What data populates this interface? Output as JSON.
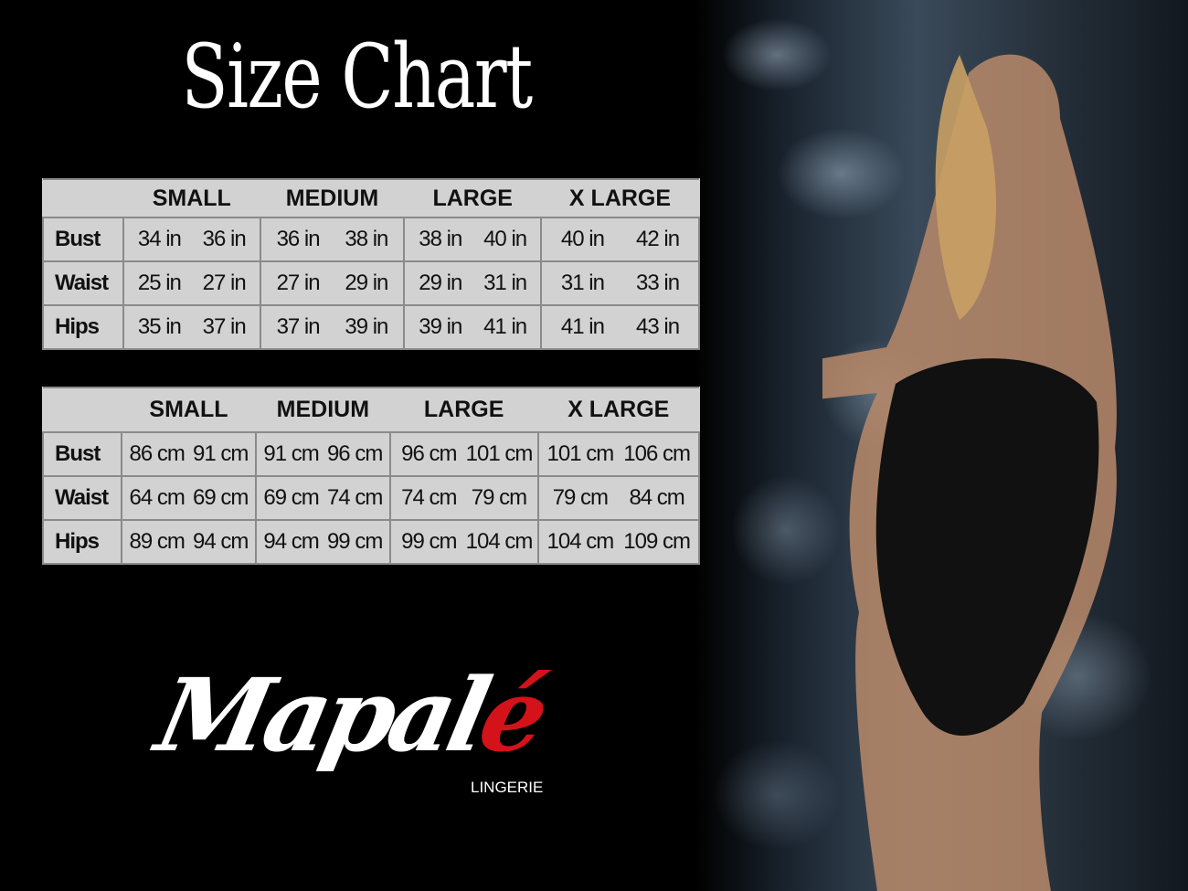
{
  "title": "Size Chart",
  "brand": {
    "name": "Mapal",
    "accent_letter": "é",
    "tagline": "LINGERIE",
    "accent_color": "#d4121a"
  },
  "sizes": [
    "SMALL",
    "MEDIUM",
    "LARGE",
    "X LARGE"
  ],
  "tables": [
    {
      "unit": "in",
      "rows": [
        {
          "label": "Bust",
          "values": [
            "34 in",
            "36 in",
            "36 in",
            "38 in",
            "38 in",
            "40 in",
            "40 in",
            "42 in"
          ]
        },
        {
          "label": "Waist",
          "values": [
            "25 in",
            "27 in",
            "27 in",
            "29 in",
            "29 in",
            "31 in",
            "31 in",
            "33 in"
          ]
        },
        {
          "label": "Hips",
          "values": [
            "35 in",
            "37 in",
            "37 in",
            "39 in",
            "39 in",
            "41 in",
            "41 in",
            "43 in"
          ]
        }
      ]
    },
    {
      "unit": "cm",
      "rows": [
        {
          "label": "Bust",
          "values": [
            "86 cm",
            "91 cm",
            "91 cm",
            "96 cm",
            "96 cm",
            "101 cm",
            "101 cm",
            "106 cm"
          ]
        },
        {
          "label": "Waist",
          "values": [
            "64 cm",
            "69 cm",
            "69 cm",
            "74 cm",
            "74 cm",
            "79  cm",
            "79 cm",
            "84 cm"
          ]
        },
        {
          "label": "Hips",
          "values": [
            "89 cm",
            "94 cm",
            "94 cm",
            "99 cm",
            "99 cm",
            "104 cm",
            "104 cm",
            "109 cm"
          ]
        }
      ]
    }
  ]
}
